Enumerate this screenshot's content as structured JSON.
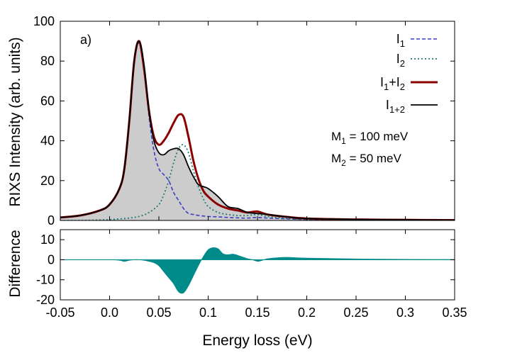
{
  "chart_data": [
    {
      "type": "line",
      "panel_label": "a)",
      "ylabel": "RIXS Intensity (arb. units)",
      "xlim": [
        -0.05,
        0.35
      ],
      "ylim": [
        0,
        100
      ],
      "xticks": [
        -0.05,
        0.0,
        0.05,
        0.1,
        0.15,
        0.2,
        0.25,
        0.3,
        0.35
      ],
      "xtick_labels": [
        "-0.05",
        "0.0",
        "0.05",
        "0.1",
        "0.15",
        "0.2",
        "0.25",
        "0.3",
        "0.35"
      ],
      "yticks": [
        0,
        20,
        40,
        60,
        80,
        100
      ],
      "ytick_labels": [
        "0",
        "20",
        "40",
        "60",
        "80",
        "100"
      ],
      "legend_position": "top-right",
      "annotations": [
        {
          "base": "M",
          "sub": "1",
          "rest": " = 100 meV"
        },
        {
          "base": "M",
          "sub": "2",
          "rest": " = 50 meV"
        }
      ],
      "series": [
        {
          "name": {
            "base": "I",
            "sub": "1"
          },
          "color": "#3c3cc8",
          "style": "dashed",
          "x": [
            -0.05,
            -0.03,
            -0.01,
            0.0,
            0.01,
            0.015,
            0.02,
            0.025,
            0.03,
            0.035,
            0.04,
            0.045,
            0.05,
            0.055,
            0.06,
            0.065,
            0.07,
            0.075,
            0.08,
            0.085,
            0.09,
            0.1,
            0.11,
            0.12,
            0.13,
            0.14,
            0.15,
            0.16,
            0.18,
            0.2,
            0.25,
            0.3,
            0.35
          ],
          "y": [
            1.5,
            2.5,
            5,
            8,
            16,
            26,
            50,
            80,
            89,
            75,
            52,
            35,
            26,
            23,
            20,
            14,
            10,
            6,
            3.5,
            3,
            2.5,
            2,
            1.8,
            1.5,
            1.3,
            1.2,
            1.5,
            1.2,
            0.8,
            0.5,
            0.3,
            0.2,
            0.1
          ]
        },
        {
          "name": {
            "base": "I",
            "sub": "2"
          },
          "color": "#207878",
          "style": "dotted",
          "x": [
            -0.05,
            -0.03,
            -0.01,
            0.0,
            0.01,
            0.02,
            0.03,
            0.04,
            0.05,
            0.055,
            0.06,
            0.065,
            0.07,
            0.075,
            0.08,
            0.085,
            0.09,
            0.095,
            0.1,
            0.11,
            0.12,
            0.13,
            0.14,
            0.15,
            0.16,
            0.18,
            0.2,
            0.25,
            0.3,
            0.35
          ],
          "y": [
            0,
            0,
            0.2,
            0.4,
            0.8,
            1.2,
            2,
            4,
            8,
            13,
            20,
            29,
            36,
            38,
            34,
            25,
            17,
            11,
            7,
            4,
            3,
            2.5,
            2.5,
            3,
            2,
            1,
            0.5,
            0.2,
            0.1,
            0.05
          ]
        },
        {
          "name": {
            "base": "I",
            "sub": "1",
            "plus": "+I",
            "sub2": "2"
          },
          "color": "#8b0000",
          "style": "solid",
          "x": [
            -0.05,
            -0.03,
            -0.01,
            0.0,
            0.01,
            0.015,
            0.02,
            0.025,
            0.03,
            0.035,
            0.04,
            0.045,
            0.05,
            0.055,
            0.06,
            0.065,
            0.07,
            0.075,
            0.08,
            0.085,
            0.09,
            0.095,
            0.1,
            0.11,
            0.12,
            0.13,
            0.14,
            0.15,
            0.16,
            0.18,
            0.2,
            0.25,
            0.3,
            0.35
          ],
          "y": [
            1.5,
            2.5,
            5,
            8,
            16,
            26,
            50,
            80,
            90,
            76,
            55,
            42,
            38,
            40,
            44,
            49,
            53,
            52,
            42,
            30,
            21,
            15,
            12,
            8,
            6,
            5,
            4,
            4.5,
            3,
            1.8,
            1,
            0.5,
            0.3,
            0.15
          ]
        },
        {
          "name": {
            "base": "I",
            "sub": "1+2"
          },
          "color": "#000000",
          "style": "solid",
          "fill": "#cccccc",
          "x": [
            -0.05,
            -0.03,
            -0.01,
            0.0,
            0.01,
            0.015,
            0.02,
            0.025,
            0.03,
            0.035,
            0.04,
            0.045,
            0.05,
            0.055,
            0.06,
            0.065,
            0.07,
            0.075,
            0.08,
            0.085,
            0.09,
            0.095,
            0.1,
            0.11,
            0.12,
            0.13,
            0.14,
            0.15,
            0.16,
            0.18,
            0.2,
            0.25,
            0.3,
            0.35
          ],
          "y": [
            1.5,
            2.5,
            5,
            8,
            16,
            26,
            50,
            80,
            90,
            78,
            55,
            40,
            34,
            33,
            35,
            36,
            36,
            33,
            27,
            22,
            18,
            17,
            16,
            12,
            7,
            6,
            4,
            3.5,
            3,
            1.8,
            1,
            0.5,
            0.3,
            0.15
          ]
        }
      ]
    },
    {
      "type": "area",
      "ylabel": "Difference",
      "xlabel": "Energy loss (eV)",
      "xlim": [
        -0.05,
        0.35
      ],
      "ylim": [
        -20,
        15
      ],
      "yticks": [
        -20,
        -10,
        0,
        10
      ],
      "ytick_labels": [
        "-20",
        "-10",
        "0",
        "10"
      ],
      "fill_color": "#008b8b",
      "series": [
        {
          "x": [
            -0.05,
            0.0,
            0.01,
            0.015,
            0.02,
            0.025,
            0.03,
            0.035,
            0.04,
            0.045,
            0.05,
            0.055,
            0.06,
            0.065,
            0.07,
            0.075,
            0.08,
            0.085,
            0.09,
            0.095,
            0.1,
            0.105,
            0.11,
            0.115,
            0.12,
            0.125,
            0.13,
            0.14,
            0.145,
            0.15,
            0.155,
            0.16,
            0.17,
            0.18,
            0.2,
            0.25,
            0.3,
            0.35
          ],
          "y": [
            0,
            0,
            -0.3,
            -0.8,
            -0.3,
            0,
            0,
            -0.3,
            -0.8,
            -1.5,
            -3,
            -6,
            -9,
            -12,
            -16,
            -16.5,
            -13,
            -8,
            -3,
            1.5,
            5,
            6,
            5.5,
            3,
            2.5,
            2.8,
            2.2,
            0.5,
            0,
            -0.8,
            -0.3,
            0.5,
            1,
            1.2,
            0.8,
            0.4,
            0.2,
            0.1
          ]
        }
      ]
    }
  ]
}
